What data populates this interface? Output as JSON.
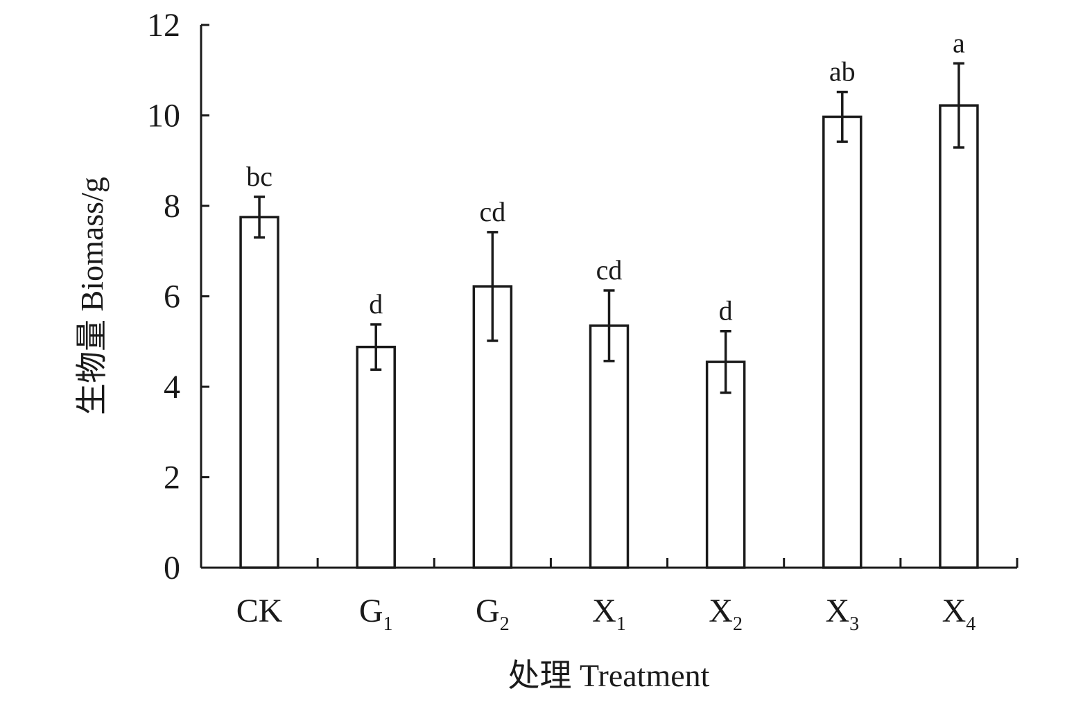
{
  "chart_data": {
    "type": "bar",
    "categories": [
      {
        "main": "CK",
        "sub": ""
      },
      {
        "main": "G",
        "sub": "1"
      },
      {
        "main": "G",
        "sub": "2"
      },
      {
        "main": "X",
        "sub": "1"
      },
      {
        "main": "X",
        "sub": "2"
      },
      {
        "main": "X",
        "sub": "3"
      },
      {
        "main": "X",
        "sub": "4"
      }
    ],
    "values": [
      7.75,
      4.88,
      6.22,
      5.35,
      4.55,
      9.97,
      10.22
    ],
    "errors": [
      0.45,
      0.5,
      1.2,
      0.78,
      0.68,
      0.55,
      0.93
    ],
    "significance": [
      "bc",
      "d",
      "cd",
      "cd",
      "d",
      "ab",
      "a"
    ],
    "xlabel": "处理 Treatment",
    "ylabel": "生物量 Biomass/g",
    "ylim": [
      0,
      12
    ],
    "yticks": [
      0,
      2,
      4,
      6,
      8,
      10,
      12
    ],
    "yticks_text": [
      "0",
      "2",
      "4",
      "6",
      "8",
      "10",
      "12"
    ],
    "grid": false,
    "bar_fill": "#ffffff",
    "bar_stroke": "#1a1a1a"
  }
}
